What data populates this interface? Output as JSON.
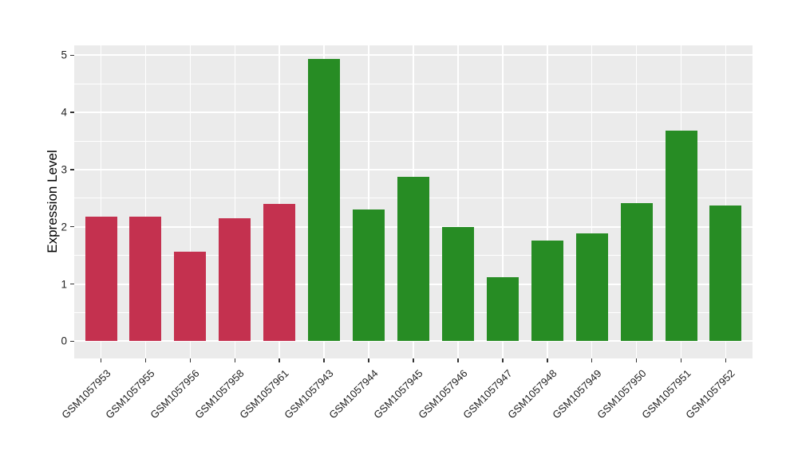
{
  "figure": {
    "panel_background": "#EBEBEB",
    "gridline_color": "#FFFFFF",
    "tick_color": "#333333",
    "label_color": "#1F1F1F"
  },
  "chart_data": {
    "type": "bar",
    "ylabel": "Expression Level",
    "xlabel": "",
    "categories": [
      "GSM1057953",
      "GSM1057955",
      "GSM1057956",
      "GSM1057958",
      "GSM1057961",
      "GSM1057943",
      "GSM1057944",
      "GSM1057945",
      "GSM1057946",
      "GSM1057947",
      "GSM1057948",
      "GSM1057949",
      "GSM1057950",
      "GSM1057951",
      "GSM1057952"
    ],
    "values": [
      2.18,
      2.18,
      1.57,
      2.15,
      2.4,
      4.93,
      2.3,
      2.88,
      2.0,
      1.12,
      1.76,
      1.88,
      2.41,
      3.68,
      2.37
    ],
    "bar_colors": [
      "#C4314F",
      "#C4314F",
      "#C4314F",
      "#C4314F",
      "#C4314F",
      "#278C24",
      "#278C24",
      "#278C24",
      "#278C24",
      "#278C24",
      "#278C24",
      "#278C24",
      "#278C24",
      "#278C24",
      "#278C24"
    ],
    "group_colors": {
      "red_group": "#C4314F",
      "green_group": "#278C24"
    },
    "yticks": [
      0,
      1,
      2,
      3,
      4,
      5
    ],
    "yticks_minor": [
      0.5,
      1.5,
      2.5,
      3.5,
      4.5
    ],
    "ylim": [
      0,
      5
    ],
    "grid": "major-and-minor",
    "legend_position": "none"
  }
}
